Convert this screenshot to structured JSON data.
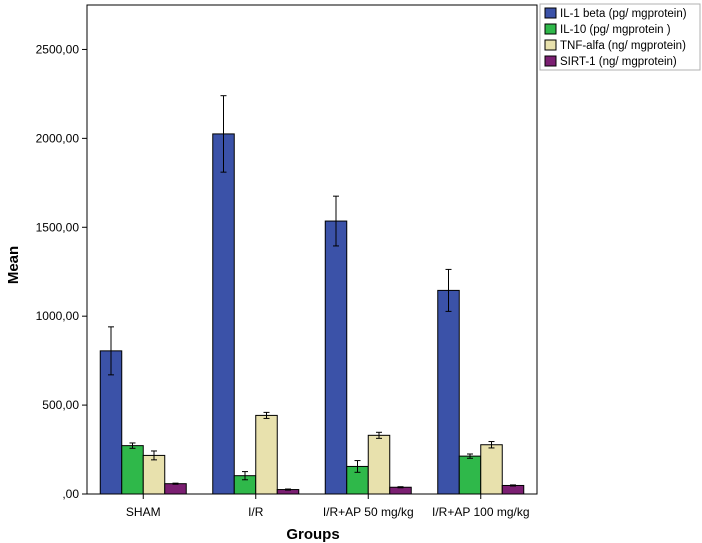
{
  "chart_data": {
    "type": "bar",
    "title": "",
    "xlabel": "Groups",
    "ylabel": "Mean",
    "ylim": [
      0,
      2750
    ],
    "yticks": [
      0,
      500,
      1000,
      1500,
      2000,
      2500
    ],
    "ytick_labels": [
      ",00",
      "500,00",
      "1000,00",
      "1500,00",
      "2000,00",
      "2500,00"
    ],
    "grid": false,
    "legend_position": "top-right",
    "error_bars": true,
    "categories": [
      "SHAM",
      "I/R",
      "I/R+AP 50 mg/kg",
      "I/R+AP 100 mg/kg"
    ],
    "series": [
      {
        "name": "IL-1 beta (pg/ mgprotein)",
        "color": "#3b52a8",
        "values": [
          805,
          2025,
          1535,
          1145
        ],
        "errors": [
          135,
          215,
          140,
          118
        ]
      },
      {
        "name": "IL-10 (pg/ mgprotein )",
        "color": "#2fb84a",
        "values": [
          272,
          103,
          155,
          213
        ],
        "errors": [
          15,
          23,
          33,
          12
        ]
      },
      {
        "name": "TNF-alfa (ng/ mgprotein)",
        "color": "#e8e1ad",
        "values": [
          217,
          442,
          330,
          277
        ],
        "errors": [
          25,
          17,
          17,
          18
        ]
      },
      {
        "name": "SIRT-1 (ng/ mgprotein)",
        "color": "#7b1f72",
        "values": [
          58,
          25,
          38,
          48
        ],
        "errors": [
          3,
          3,
          3,
          3
        ]
      }
    ]
  }
}
